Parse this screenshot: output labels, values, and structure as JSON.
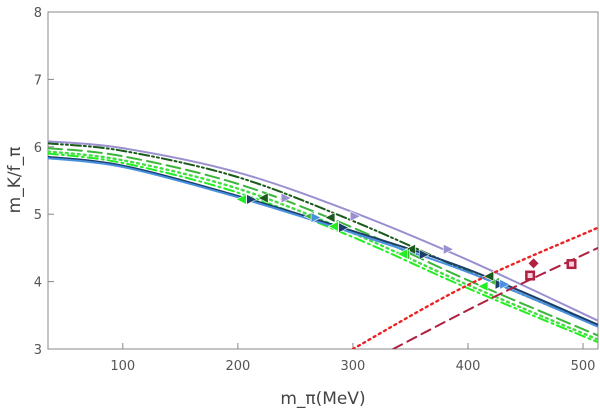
{
  "chart_data": {
    "type": "line",
    "title": "",
    "xlabel": "m_π(MeV)",
    "ylabel": "m_K/f_π",
    "xlim": [
      35,
      513
    ],
    "ylim": [
      3,
      8
    ],
    "x_ticks": [
      "100",
      "200",
      "300",
      "400",
      "500"
    ],
    "y_ticks": [
      "3",
      "4",
      "5",
      "6",
      "7",
      "8"
    ],
    "grid": false,
    "series": [
      {
        "name": "fit-lavender-solid",
        "style": "solid",
        "color": "#9a90d0",
        "x": [
          35,
          100,
          200,
          300,
          400,
          513
        ],
        "y": [
          6.08,
          5.98,
          5.62,
          5.03,
          4.32,
          3.42
        ]
      },
      {
        "name": "fit-darkgreen-dashdot",
        "style": "dashdotdot",
        "color": "#1a5a1a",
        "x": [
          35,
          100,
          200,
          300,
          400,
          513
        ],
        "y": [
          6.05,
          5.94,
          5.55,
          4.9,
          4.15,
          3.34
        ]
      },
      {
        "name": "fit-green-dashed",
        "style": "longdash",
        "color": "#3cb53c",
        "x": [
          35,
          100,
          200,
          300,
          400,
          513
        ],
        "y": [
          5.98,
          5.86,
          5.45,
          4.8,
          4.02,
          3.2
        ]
      },
      {
        "name": "fit-lime-dotted",
        "style": "dotted",
        "color": "#44dd44",
        "x": [
          35,
          100,
          200,
          300,
          400,
          513
        ],
        "y": [
          5.93,
          5.8,
          5.38,
          4.72,
          3.95,
          3.14
        ]
      },
      {
        "name": "fit-bright-green-dashdot",
        "style": "dashdot",
        "color": "#22ee22",
        "x": [
          35,
          100,
          200,
          300,
          400,
          513
        ],
        "y": [
          5.9,
          5.76,
          5.32,
          4.66,
          3.9,
          3.1
        ]
      },
      {
        "name": "fit-navy-solid",
        "style": "solid",
        "color": "#1a3f6a",
        "x": [
          35,
          100,
          200,
          300,
          400,
          513
        ],
        "y": [
          5.85,
          5.72,
          5.27,
          4.75,
          4.18,
          3.36
        ]
      },
      {
        "name": "fit-blue-solid",
        "style": "solid",
        "color": "#4a90e0",
        "x": [
          35,
          100,
          200,
          300,
          400,
          513
        ],
        "y": [
          5.83,
          5.7,
          5.25,
          4.72,
          4.14,
          3.33
        ]
      },
      {
        "name": "fit-red-dotted",
        "style": "dotted",
        "color": "#ee2222",
        "x": [
          300,
          400,
          513
        ],
        "y": [
          3.0,
          3.95,
          4.8
        ]
      },
      {
        "name": "fit-crimson-dashed",
        "style": "dashed",
        "color": "#b02040",
        "x": [
          335,
          420,
          513
        ],
        "y": [
          3.0,
          3.75,
          4.5
        ]
      }
    ],
    "points": [
      {
        "name": "lavender-triangle",
        "marker": "tri-right",
        "color": "#9a90d0",
        "x": [
          242,
          302,
          383
        ],
        "y": [
          5.24,
          4.97,
          4.48
        ]
      },
      {
        "name": "darkgreen-triangle",
        "marker": "tri-left",
        "color": "#1a5a1a",
        "x": [
          222,
          280,
          350,
          418
        ],
        "y": [
          5.24,
          4.95,
          4.48,
          4.08
        ]
      },
      {
        "name": "green-triangle",
        "marker": "tri-left",
        "color": "#3cb53c",
        "x": [
          262,
          283,
          345,
          423
        ],
        "y": [
          4.97,
          4.82,
          4.4,
          3.99
        ]
      },
      {
        "name": "lime-triangle",
        "marker": "tri-left",
        "color": "#22ee22",
        "x": [
          203,
          283,
          343,
          413
        ],
        "y": [
          5.22,
          4.82,
          4.41,
          3.93
        ]
      },
      {
        "name": "navy-triangle",
        "marker": "tri-right",
        "color": "#1a3f6a",
        "x": [
          212,
          292,
          362,
          428
        ],
        "y": [
          5.22,
          4.8,
          4.4,
          3.96
        ]
      },
      {
        "name": "blue-triangle",
        "marker": "tri-right",
        "color": "#4a90e0",
        "x": [
          268,
          432
        ],
        "y": [
          4.95,
          3.96
        ]
      },
      {
        "name": "crimson-diamond",
        "marker": "diamond",
        "color": "#b02040",
        "x": [
          457
        ],
        "y": [
          4.27
        ]
      },
      {
        "name": "crimson-square",
        "marker": "square",
        "color": "#b02040",
        "x": [
          454,
          490
        ],
        "y": [
          4.09,
          4.26
        ]
      }
    ]
  }
}
